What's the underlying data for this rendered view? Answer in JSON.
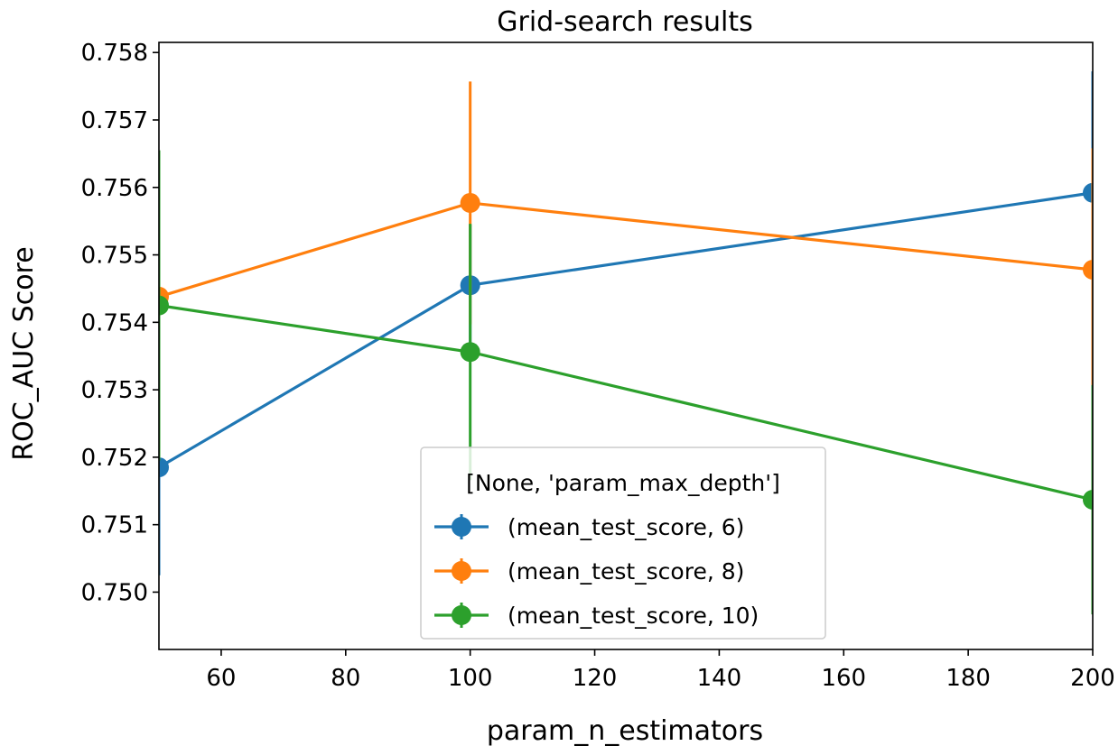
{
  "chart_data": {
    "type": "line",
    "title": "Grid-search results",
    "xlabel": "param_n_estimators",
    "ylabel": "ROC_AUC Score",
    "xlim": [
      50,
      200
    ],
    "ylim": [
      0.74915,
      0.75815
    ],
    "x_ticks": [
      60,
      80,
      100,
      120,
      140,
      160,
      180,
      200
    ],
    "x_tick_labels": [
      "60",
      "80",
      "100",
      "120",
      "140",
      "160",
      "180",
      "200"
    ],
    "y_ticks": [
      0.75,
      0.751,
      0.752,
      0.753,
      0.754,
      0.755,
      0.756,
      0.757,
      0.758
    ],
    "y_tick_labels": [
      "0.750",
      "0.751",
      "0.752",
      "0.753",
      "0.754",
      "0.755",
      "0.756",
      "0.757",
      "0.758"
    ],
    "grid": false,
    "legend": {
      "title": "[None, 'param_max_depth']",
      "placement": "lower-center"
    },
    "x": [
      50,
      100,
      200
    ],
    "series": [
      {
        "name": "(mean_test_score, 6)",
        "color": "#1f77b4",
        "values": [
          0.75185,
          0.75455,
          0.75592
        ],
        "error": [
          0.0016,
          0.0009,
          0.0018
        ]
      },
      {
        "name": "(mean_test_score, 8)",
        "color": "#ff7f0e",
        "values": [
          0.75438,
          0.75577,
          0.75478
        ],
        "error": [
          0.0011,
          0.0018,
          0.0018
        ]
      },
      {
        "name": "(mean_test_score, 10)",
        "color": "#2ca02c",
        "values": [
          0.75425,
          0.75356,
          0.75137
        ],
        "error": [
          0.0023,
          0.0019,
          0.0017
        ]
      }
    ]
  }
}
